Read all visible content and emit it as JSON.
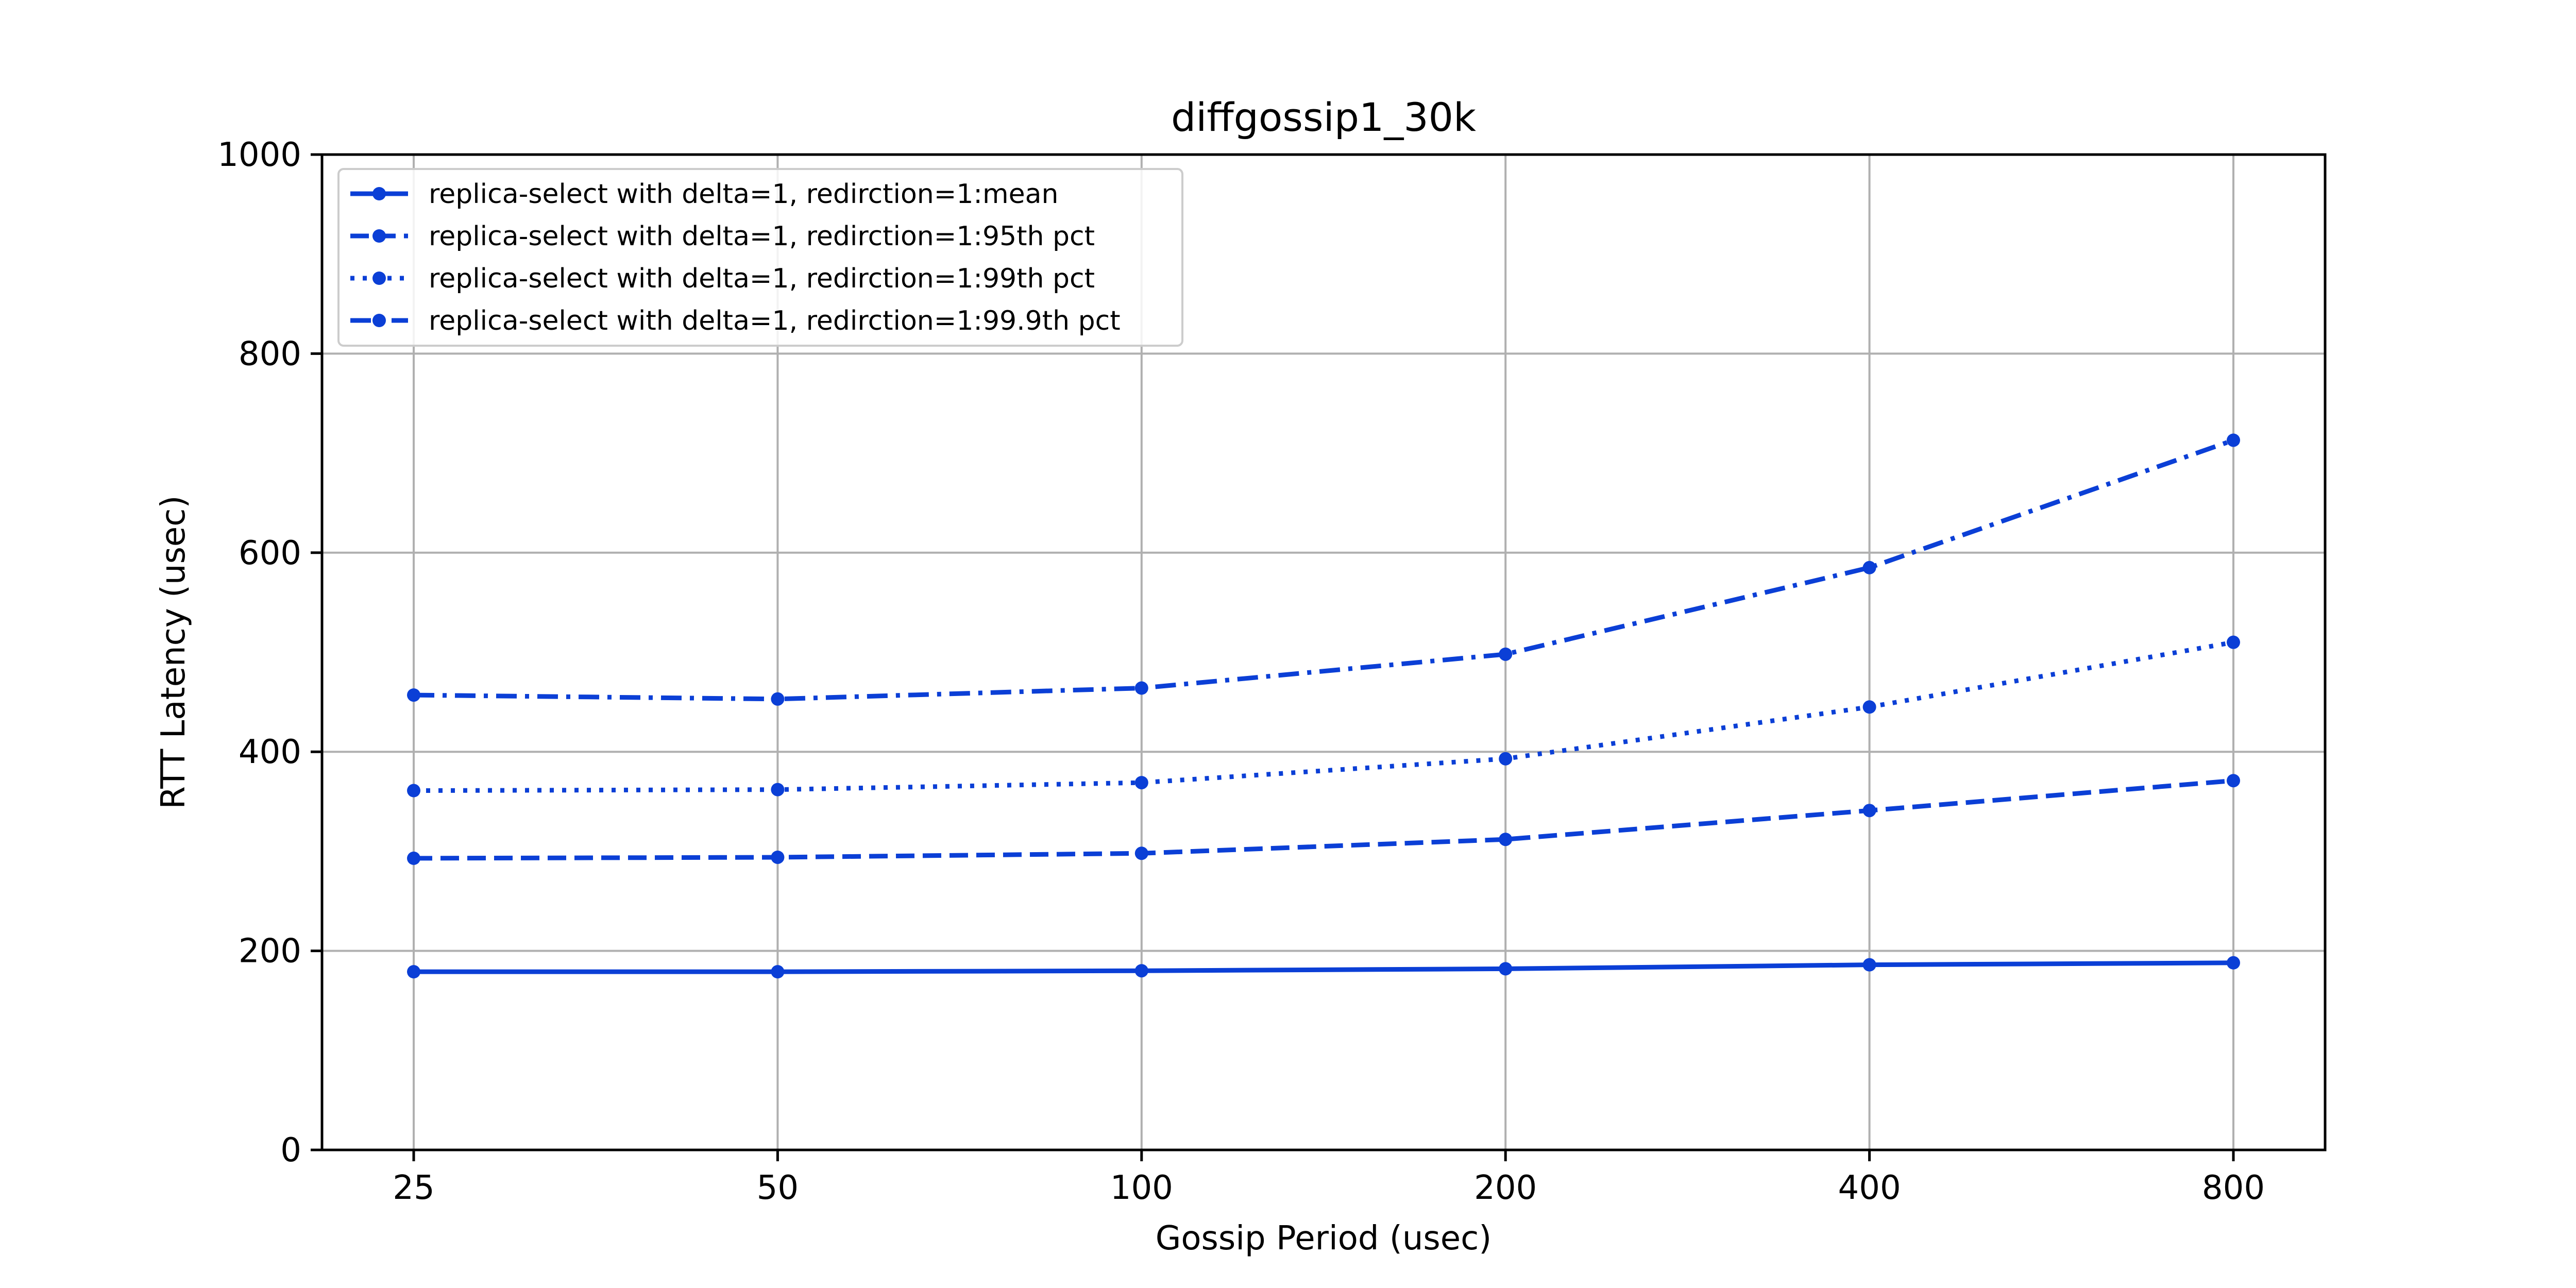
{
  "chart_data": {
    "type": "line",
    "title": "diffgossip1_30k",
    "xlabel": "Gossip Period (usec)",
    "ylabel": "RTT Latency (usec)",
    "x": [
      "25",
      "50",
      "100",
      "200",
      "400",
      "800"
    ],
    "x_scale": "log2",
    "ylim": [
      0,
      1000
    ],
    "yticks": [
      "0",
      "200",
      "400",
      "600",
      "800",
      "1000"
    ],
    "grid": true,
    "legend_position": "upper-left",
    "color": "#0b3fd6",
    "series": [
      {
        "name": "replica-select with delta=1, redirction=1:mean",
        "style": "solid",
        "values": [
          179,
          179,
          180,
          182,
          186,
          188
        ]
      },
      {
        "name": "replica-select with delta=1, redirction=1:95th pct",
        "style": "dashed",
        "values": [
          293,
          294,
          298,
          312,
          341,
          371
        ]
      },
      {
        "name": "replica-select with delta=1, redirction=1:99th pct",
        "style": "dotted",
        "values": [
          361,
          362,
          369,
          393,
          445,
          510
        ]
      },
      {
        "name": "replica-select with delta=1, redirction=1:99.9th pct",
        "style": "dashdot",
        "values": [
          457,
          453,
          464,
          498,
          585,
          713
        ]
      }
    ]
  }
}
